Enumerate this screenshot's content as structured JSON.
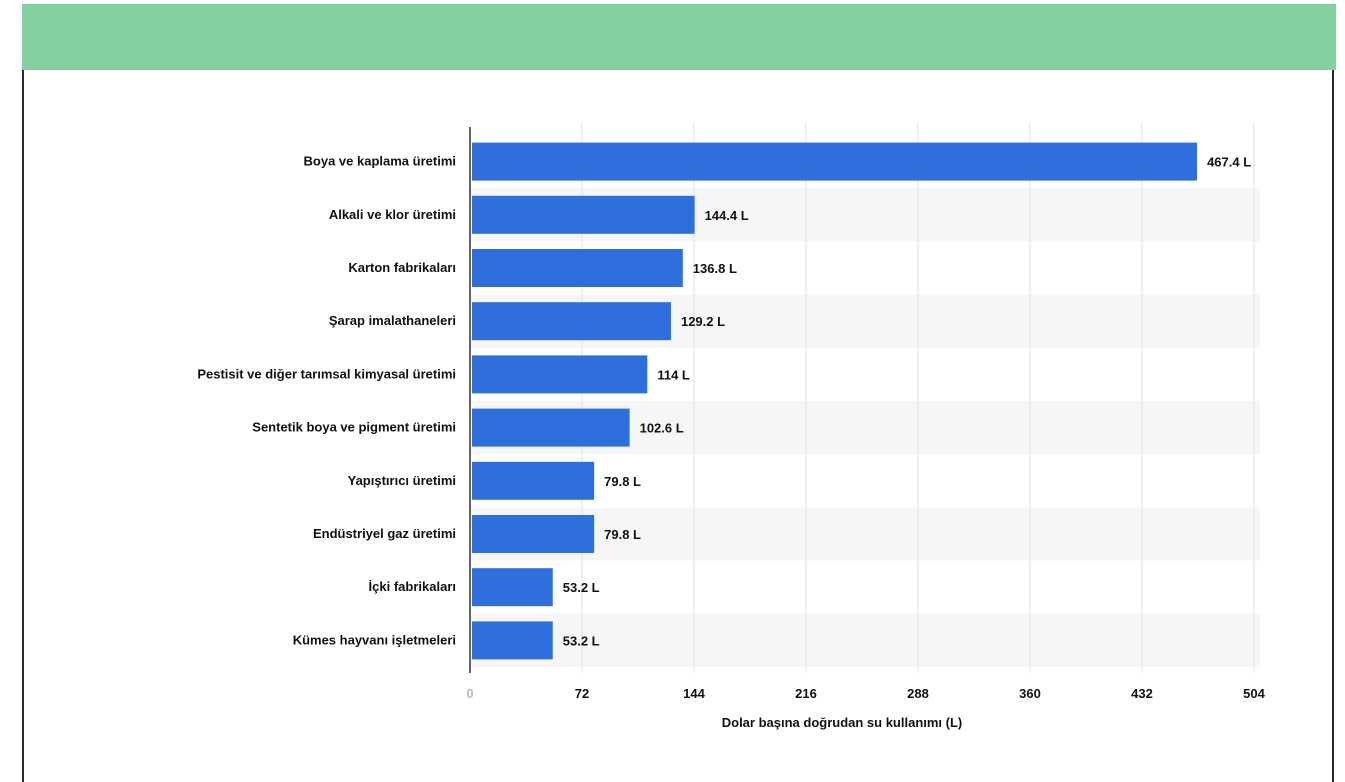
{
  "colors": {
    "header": "#84d0a1",
    "bar": "#2f6fdc",
    "stripe": "#f6f6f6",
    "grid": "#e2e2e2"
  },
  "chart_data": {
    "type": "bar",
    "orientation": "horizontal",
    "title": "",
    "categories": [
      "Boya ve kaplama üretimi",
      "Alkali ve klor üretimi",
      "Karton fabrikaları",
      "Şarap imalathaneleri",
      "Pestisit ve diğer tarımsal kimyasal üretimi",
      "Sentetik boya ve pigment üretimi",
      "Yapıştırıcı üretimi",
      "Endüstriyel gaz üretimi",
      "İçki fabrikaları",
      "Kümes hayvanı işletmeleri"
    ],
    "values": [
      467.4,
      144.4,
      136.8,
      129.2,
      114,
      102.6,
      79.8,
      79.8,
      53.2,
      53.2
    ],
    "value_labels": [
      "467.4 L",
      "144.4 L",
      "136.8 L",
      "129.2 L",
      "114 L",
      "102.6 L",
      "79.8 L",
      "79.8 L",
      "53.2 L",
      "53.2 L"
    ],
    "xlabel": "Dolar başına doğrudan su kullanımı (L)",
    "ylabel": "",
    "xlim": [
      0,
      504
    ],
    "xticks": [
      0,
      72,
      144,
      216,
      288,
      360,
      432,
      504
    ],
    "xtick_labels": [
      "0",
      "72",
      "144",
      "216",
      "288",
      "360",
      "432",
      "504"
    ],
    "grid": true
  }
}
